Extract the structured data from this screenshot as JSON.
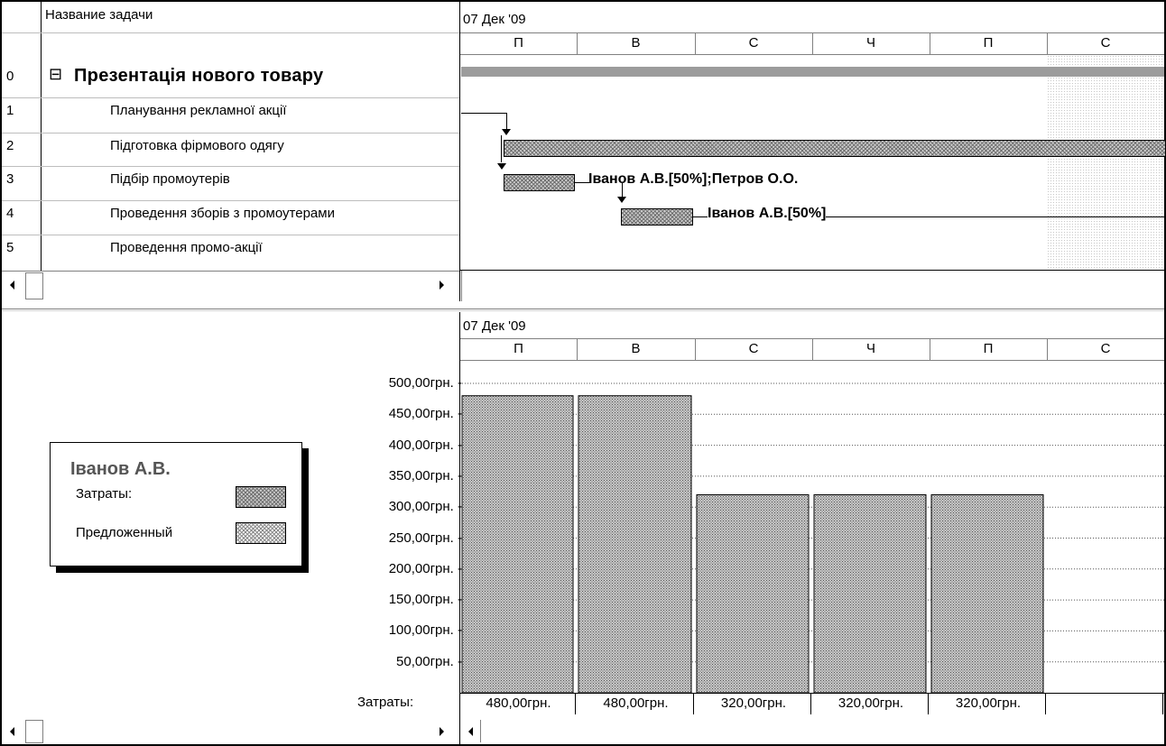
{
  "task_table": {
    "header": "Название задачи",
    "rows": [
      {
        "id": "0",
        "name": "Презентація нового товару",
        "summary": true
      },
      {
        "id": "1",
        "name": "Планування  рекламної акції"
      },
      {
        "id": "2",
        "name": "Підготовка фірмового одягу"
      },
      {
        "id": "3",
        "name": "Підбір промоутерів"
      },
      {
        "id": "4",
        "name": "Проведення зборів з промоутерами"
      },
      {
        "id": "5",
        "name": "Проведення промо-акції"
      }
    ],
    "collapse_glyph": "⊟"
  },
  "timescale_top": {
    "week": "07 Дек '09",
    "days": [
      "П",
      "В",
      "С",
      "Ч",
      "П",
      "С"
    ]
  },
  "timescale_bottom": {
    "week": "07 Дек '09",
    "days": [
      "П",
      "В",
      "С",
      "Ч",
      "П",
      "С"
    ]
  },
  "gantt": {
    "labels": {
      "task3": "Іванов А.В.[50%];Петров О.О.",
      "task4": "Іванов А.В.[50%]"
    }
  },
  "legend": {
    "resource": "Іванов А.В.",
    "cost_label": "Затраты:",
    "proposed_label": "Предложенный"
  },
  "cost_row_label": "Затраты:",
  "chart_data": {
    "type": "bar",
    "categories": [
      "П",
      "В",
      "С",
      "Ч",
      "П",
      "С"
    ],
    "series": [
      {
        "name": "Затраты:",
        "values": [
          480,
          480,
          320,
          320,
          320,
          0
        ]
      }
    ],
    "ylim": [
      0,
      500
    ],
    "yticks": [
      "500,00грн. -",
      "450,00грн. -",
      "400,00грн. -",
      "350,00грн. -",
      "300,00грн. -",
      "250,00грн. -",
      "200,00грн. -",
      "150,00грн. -",
      "100,00грн. -",
      "50,00грн. -"
    ],
    "cost_values": [
      "480,00грн.",
      "480,00грн.",
      "320,00грн.",
      "320,00грн.",
      "320,00грн.",
      ""
    ]
  }
}
